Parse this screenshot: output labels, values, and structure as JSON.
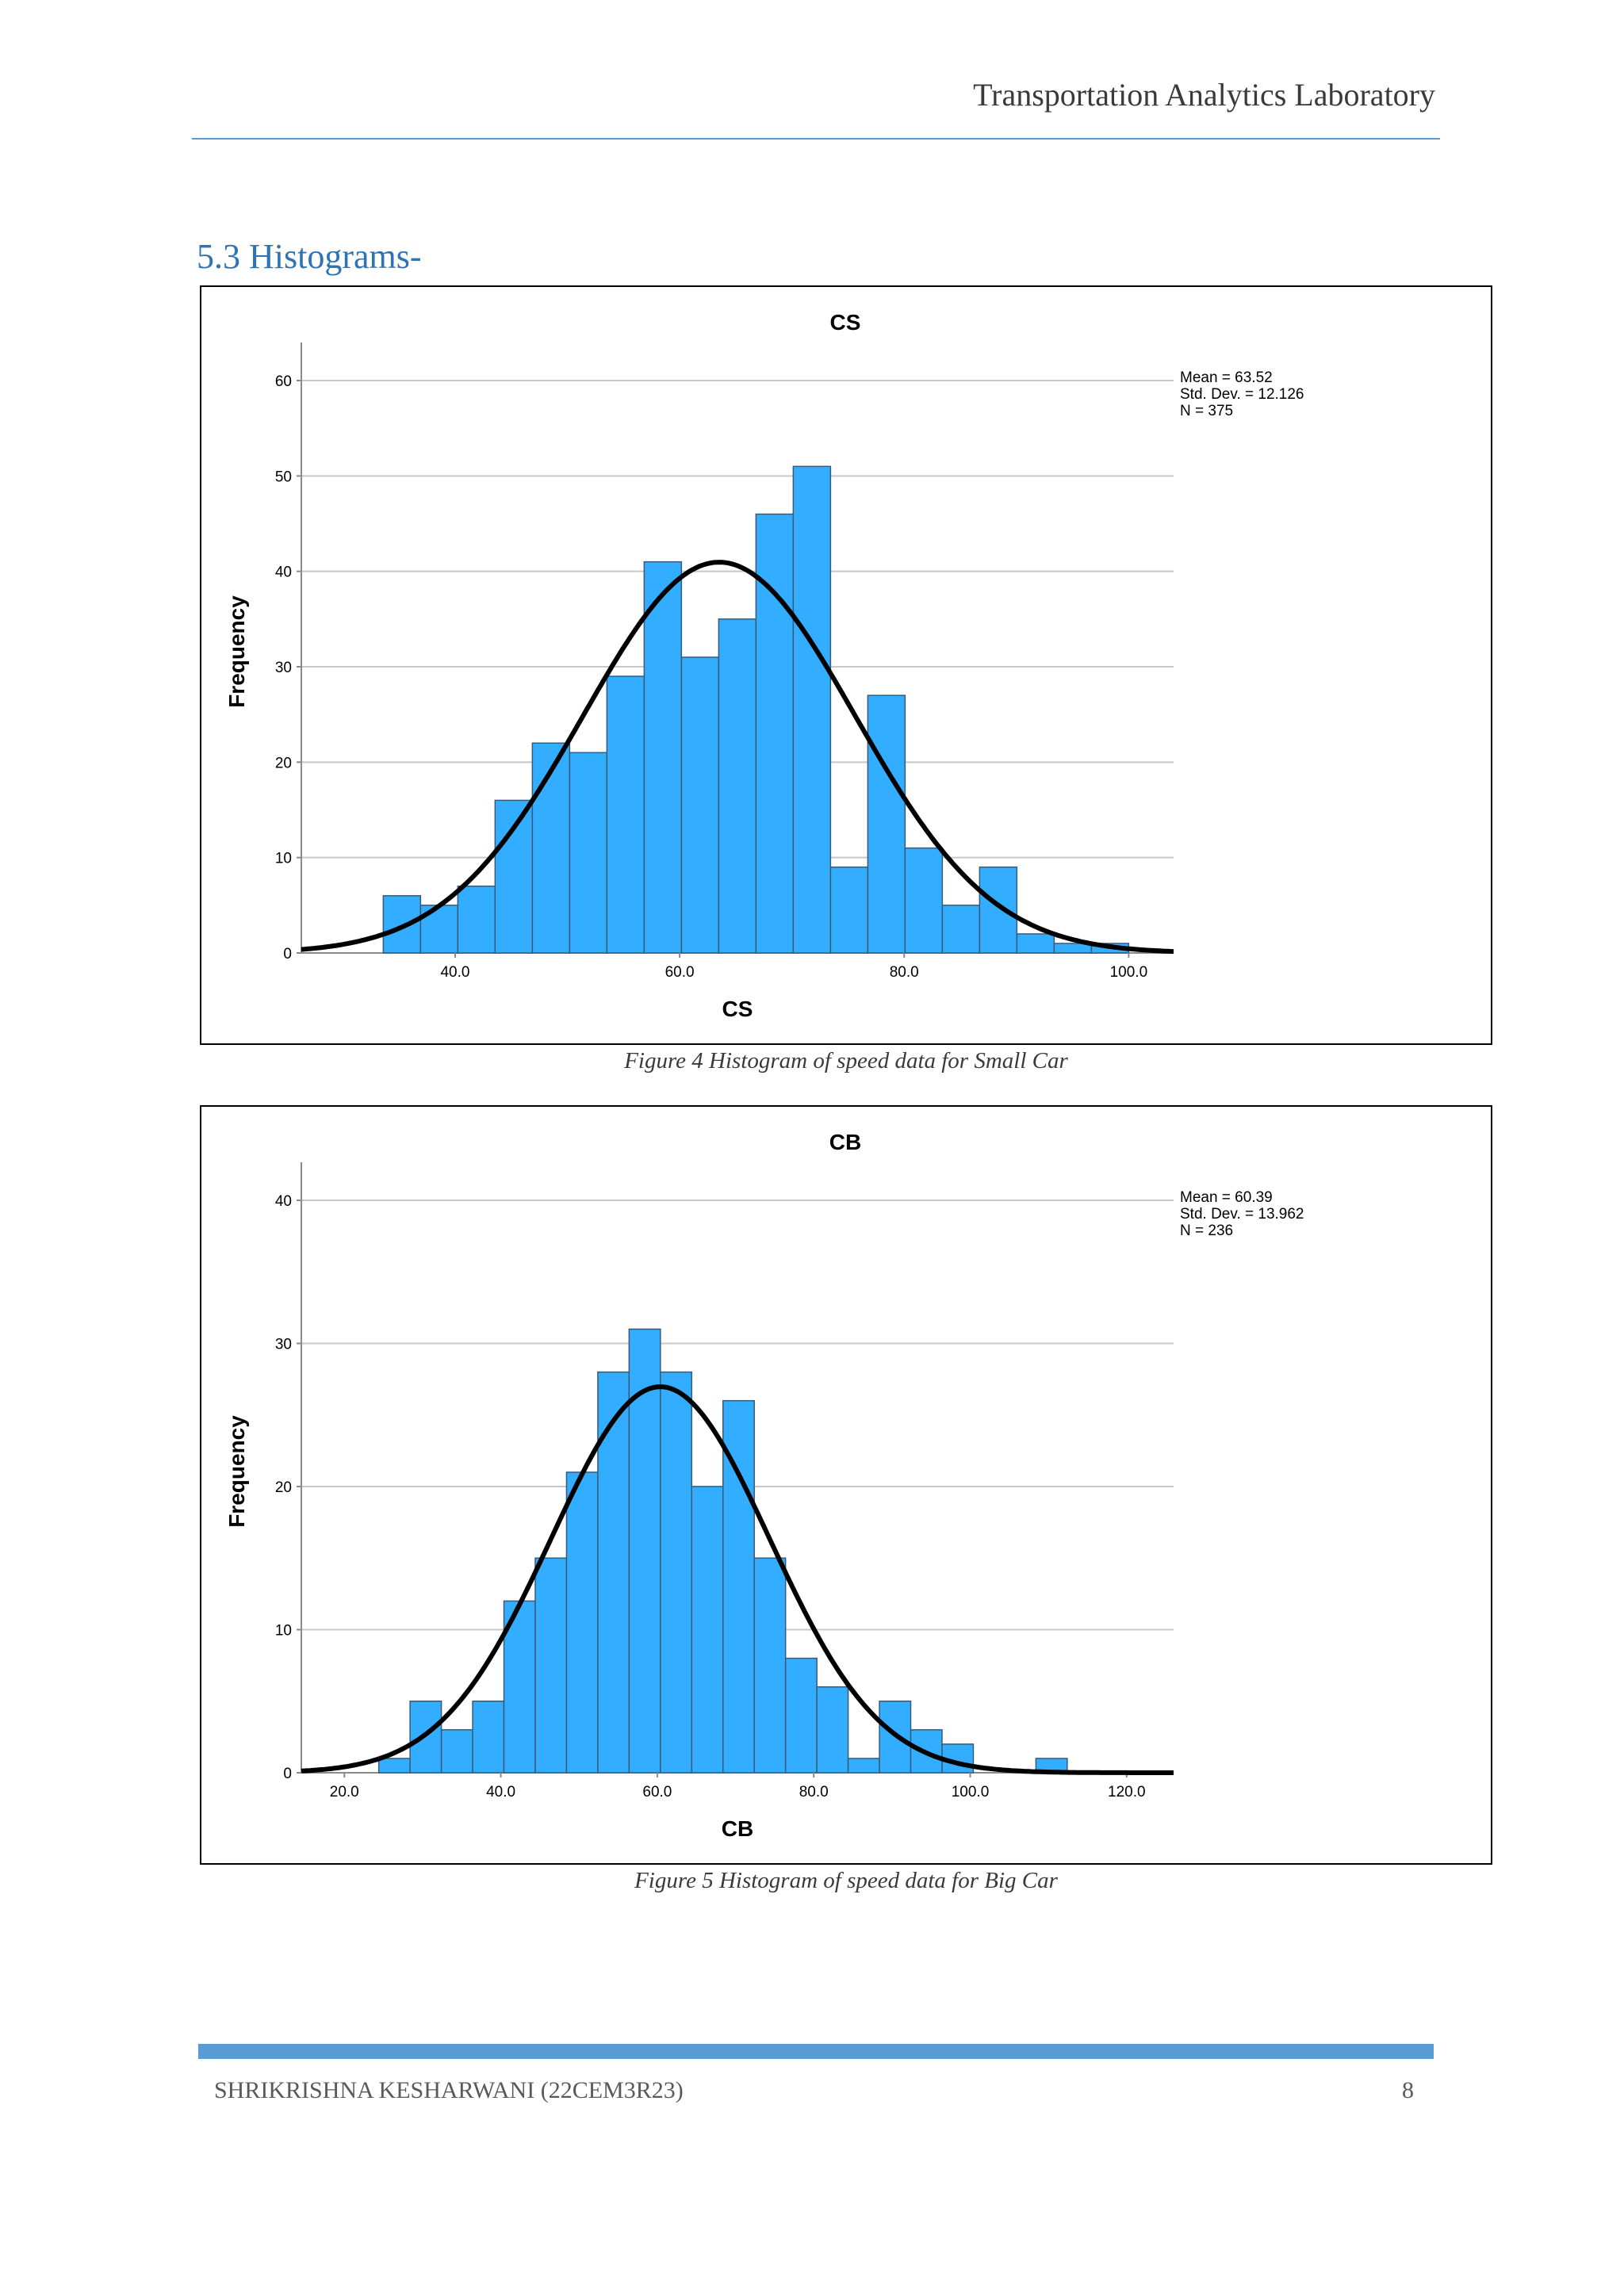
{
  "header": {
    "title": "Transportation Analytics Laboratory"
  },
  "section": {
    "heading": "5.3 Histograms-"
  },
  "figures": [
    {
      "caption": "Figure 4 Histogram of speed data for Small Car"
    },
    {
      "caption": "Figure 5 Histogram of speed data for Big Car"
    }
  ],
  "footer": {
    "author": "SHRIKRISHNA KESHARWANI (22CEM3R23)",
    "page": "8"
  },
  "chart_data": [
    {
      "type": "bar",
      "title": "CS",
      "xlabel": "CS",
      "ylabel": "Frequency",
      "xlim": [
        26.3,
        104.0
      ],
      "ylim": [
        0,
        60
      ],
      "xticks": [
        "40.0",
        "60.0",
        "80.0",
        "100.0"
      ],
      "xtick_values": [
        40,
        60,
        80,
        100
      ],
      "yticks": [
        0,
        10,
        20,
        30,
        40,
        50,
        60
      ],
      "bin_start": 33.6,
      "bin_width": 3.32,
      "values": [
        6,
        5,
        7,
        16,
        22,
        21,
        29,
        41,
        31,
        35,
        46,
        51,
        9,
        27,
        11,
        5,
        9,
        2,
        1,
        1
      ],
      "stats": [
        "Mean = 63.52",
        "Std. Dev. = 12.126",
        "N = 375"
      ],
      "normal_curve": {
        "mean": 63.52,
        "sd": 12.126,
        "n": 375
      },
      "bar_color": "#33adff",
      "grid": true,
      "legend": "top-right"
    },
    {
      "type": "bar",
      "title": "CB",
      "xlabel": "CB",
      "ylabel": "Frequency",
      "xlim": [
        14.5,
        126.0
      ],
      "ylim": [
        0,
        40
      ],
      "xticks": [
        "20.0",
        "40.0",
        "60.0",
        "80.0",
        "100.0",
        "120.0"
      ],
      "xtick_values": [
        20,
        40,
        60,
        80,
        100,
        120
      ],
      "yticks": [
        0,
        10,
        20,
        30,
        40
      ],
      "bin_start": 24.4,
      "bin_width": 4.0,
      "values": [
        1,
        5,
        3,
        5,
        12,
        15,
        21,
        28,
        31,
        28,
        20,
        26,
        15,
        8,
        6,
        1,
        5,
        3,
        2,
        0,
        0,
        1
      ],
      "stats": [
        "Mean = 60.39",
        "Std. Dev. = 13.962",
        "N = 236"
      ],
      "normal_curve": {
        "mean": 60.39,
        "sd": 13.962,
        "n": 236
      },
      "bar_color": "#33adff",
      "grid": true,
      "legend": "top-right"
    }
  ]
}
